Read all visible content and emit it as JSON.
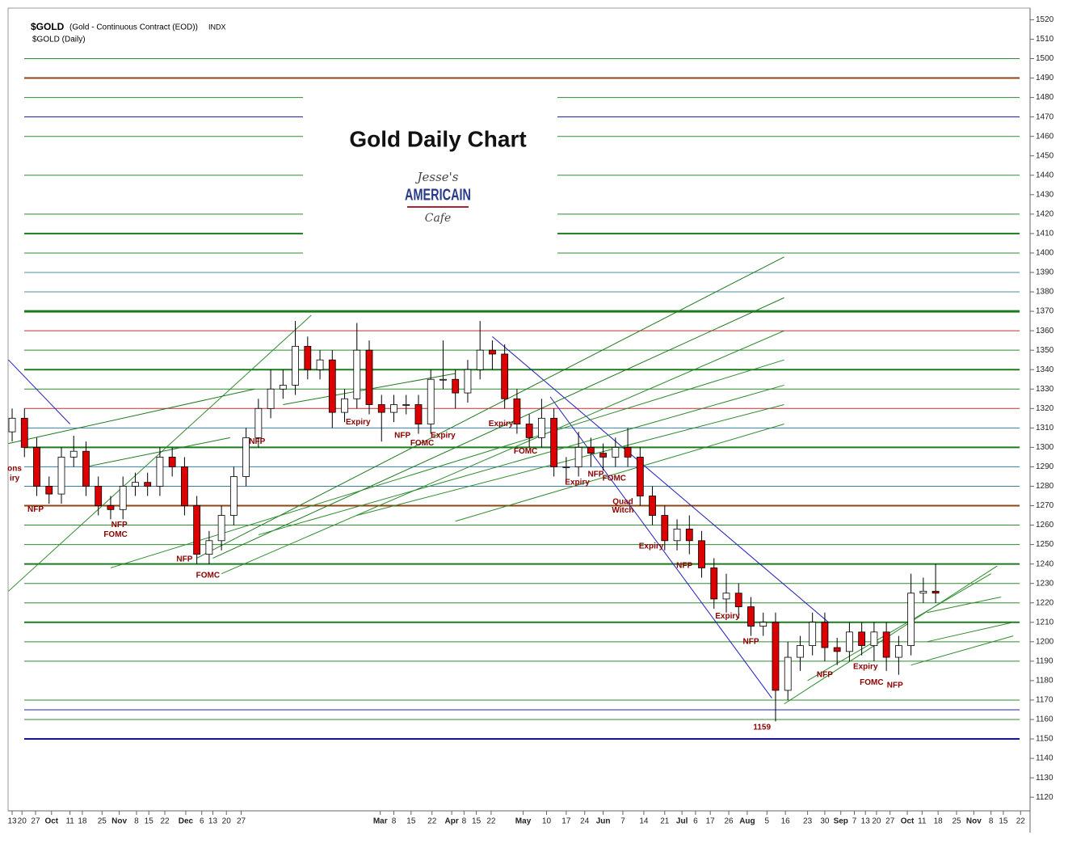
{
  "chart_data": {
    "type": "candlestick",
    "symbol": "$GOLD",
    "description": "(Gold - Continuous Contract (EOD))",
    "exchange": "INDX",
    "subtitle": "$GOLD (Daily)",
    "title": "Gold Daily Chart",
    "logo": [
      "Jesse's",
      "AMERICAIN",
      "Cafe"
    ],
    "opens": [
      1308,
      1315,
      1300,
      1280,
      1276,
      1295,
      1298,
      1280,
      1270,
      1268,
      1280,
      1282,
      1280,
      1295,
      1290,
      1270,
      1245,
      1252,
      1265,
      1285,
      1305,
      1320,
      1330,
      1332,
      1352,
      1340,
      1345,
      1318,
      1325,
      1350,
      1322,
      1318,
      1322,
      1322,
      1312,
      1335,
      1335,
      1328,
      1340,
      1350,
      1348,
      1325,
      1312,
      1305,
      1315,
      1290,
      1290,
      1300,
      1297,
      1295,
      1300,
      1295,
      1275,
      1265,
      1252,
      1258,
      1252,
      1238,
      1222,
      1225,
      1218,
      1208,
      1210,
      1175,
      1192,
      1198,
      1210,
      1197,
      1195,
      1205,
      1198,
      1205,
      1192,
      1198,
      1225,
      1226
    ],
    "highs": [
      1320,
      1320,
      1305,
      1285,
      1300,
      1306,
      1303,
      1285,
      1275,
      1285,
      1287,
      1287,
      1300,
      1300,
      1295,
      1275,
      1257,
      1270,
      1290,
      1310,
      1325,
      1340,
      1340,
      1365,
      1357,
      1350,
      1350,
      1330,
      1364,
      1355,
      1327,
      1327,
      1327,
      1327,
      1340,
      1355,
      1340,
      1345,
      1365,
      1355,
      1353,
      1330,
      1317,
      1325,
      1320,
      1295,
      1308,
      1305,
      1302,
      1305,
      1310,
      1300,
      1280,
      1270,
      1263,
      1265,
      1257,
      1243,
      1235,
      1230,
      1223,
      1215,
      1215,
      1200,
      1203,
      1215,
      1215,
      1202,
      1210,
      1210,
      1210,
      1210,
      1203,
      1235,
      1233,
      1240
    ],
    "lows": [
      1303,
      1295,
      1275,
      1271,
      1271,
      1290,
      1275,
      1265,
      1263,
      1263,
      1275,
      1275,
      1275,
      1285,
      1265,
      1240,
      1240,
      1247,
      1260,
      1280,
      1300,
      1315,
      1325,
      1327,
      1335,
      1335,
      1310,
      1313,
      1320,
      1317,
      1303,
      1313,
      1317,
      1307,
      1307,
      1330,
      1320,
      1323,
      1335,
      1340,
      1320,
      1307,
      1300,
      1300,
      1285,
      1282,
      1285,
      1290,
      1288,
      1290,
      1290,
      1270,
      1260,
      1247,
      1247,
      1245,
      1233,
      1217,
      1215,
      1212,
      1203,
      1203,
      1159,
      1170,
      1185,
      1193,
      1190,
      1188,
      1190,
      1193,
      1190,
      1185,
      1183,
      1193,
      1220,
      1220
    ],
    "closes": [
      1315,
      1300,
      1280,
      1276,
      1295,
      1298,
      1280,
      1270,
      1268,
      1280,
      1282,
      1280,
      1295,
      1290,
      1270,
      1245,
      1252,
      1265,
      1285,
      1305,
      1320,
      1330,
      1332,
      1352,
      1340,
      1345,
      1318,
      1325,
      1350,
      1322,
      1318,
      1322,
      1322,
      1312,
      1335,
      1335,
      1328,
      1340,
      1350,
      1348,
      1325,
      1312,
      1305,
      1315,
      1290,
      1290,
      1300,
      1297,
      1295,
      1300,
      1295,
      1275,
      1265,
      1252,
      1258,
      1252,
      1238,
      1222,
      1225,
      1218,
      1208,
      1210,
      1175,
      1192,
      1198,
      1210,
      1197,
      1195,
      1205,
      1198,
      1205,
      1192,
      1198,
      1225,
      1226,
      1225
    ],
    "up_color": "#ffffff",
    "down_color": "#dd0000",
    "xlim": [
      -0.33,
      82.67
    ],
    "ylim": [
      1113,
      1526
    ],
    "yticks": [
      1120,
      1130,
      1140,
      1150,
      1160,
      1170,
      1180,
      1190,
      1200,
      1210,
      1220,
      1230,
      1240,
      1250,
      1260,
      1270,
      1280,
      1290,
      1300,
      1310,
      1320,
      1330,
      1340,
      1350,
      1360,
      1370,
      1380,
      1390,
      1400,
      1410,
      1420,
      1430,
      1440,
      1450,
      1460,
      1470,
      1480,
      1490,
      1500,
      1510,
      1520
    ],
    "xticks": [
      {
        "value": 0,
        "label": "13"
      },
      {
        "value": 0.8,
        "label": "20"
      },
      {
        "value": 1.9,
        "label": "27"
      },
      {
        "value": 3.2,
        "label": "Oct"
      },
      {
        "value": 4.7,
        "label": "11"
      },
      {
        "value": 5.7,
        "label": "18"
      },
      {
        "value": 7.3,
        "label": "25"
      },
      {
        "value": 8.7,
        "label": "Nov"
      },
      {
        "value": 10.1,
        "label": "8"
      },
      {
        "value": 11.1,
        "label": "15"
      },
      {
        "value": 12.4,
        "label": "22"
      },
      {
        "value": 14.1,
        "label": "Dec"
      },
      {
        "value": 15.4,
        "label": "6"
      },
      {
        "value": 16.3,
        "label": "13"
      },
      {
        "value": 17.4,
        "label": "20"
      },
      {
        "value": 18.6,
        "label": "27"
      },
      {
        "value": 29.9,
        "label": "Mar"
      },
      {
        "value": 31,
        "label": "8"
      },
      {
        "value": 32.4,
        "label": "15"
      },
      {
        "value": 34.1,
        "label": "22"
      },
      {
        "value": 35.7,
        "label": "Apr"
      },
      {
        "value": 36.7,
        "label": "8"
      },
      {
        "value": 37.7,
        "label": "15"
      },
      {
        "value": 38.9,
        "label": "22"
      },
      {
        "value": 41.5,
        "label": "May"
      },
      {
        "value": 43.4,
        "label": "10"
      },
      {
        "value": 45,
        "label": "17"
      },
      {
        "value": 46.5,
        "label": "24"
      },
      {
        "value": 48,
        "label": "Jun"
      },
      {
        "value": 49.6,
        "label": "7"
      },
      {
        "value": 51.3,
        "label": "14"
      },
      {
        "value": 53,
        "label": "21"
      },
      {
        "value": 54.4,
        "label": "Jul"
      },
      {
        "value": 55.5,
        "label": "6"
      },
      {
        "value": 56.7,
        "label": "17"
      },
      {
        "value": 58.2,
        "label": "26"
      },
      {
        "value": 59.7,
        "label": "Aug"
      },
      {
        "value": 61.3,
        "label": "5"
      },
      {
        "value": 62.8,
        "label": "16"
      },
      {
        "value": 64.6,
        "label": "23"
      },
      {
        "value": 66,
        "label": "30"
      },
      {
        "value": 67.3,
        "label": "Sep"
      },
      {
        "value": 68.4,
        "label": "7"
      },
      {
        "value": 69.3,
        "label": "13"
      },
      {
        "value": 70.2,
        "label": "20"
      },
      {
        "value": 71.3,
        "label": "27"
      },
      {
        "value": 72.7,
        "label": "Oct"
      },
      {
        "value": 73.9,
        "label": "11"
      },
      {
        "value": 75.2,
        "label": "18"
      },
      {
        "value": 76.7,
        "label": "25"
      },
      {
        "value": 78.1,
        "label": "Nov"
      },
      {
        "value": 79.5,
        "label": "8"
      },
      {
        "value": 80.5,
        "label": "15"
      },
      {
        "value": 81.9,
        "label": "22"
      }
    ],
    "levels": [
      {
        "value": 1500,
        "color": "#2e8b2e",
        "width": 1
      },
      {
        "value": 1490,
        "color": "#8b4513",
        "width": 2
      },
      {
        "value": 1480,
        "color": "#2e8b2e",
        "width": 1
      },
      {
        "value": 1470,
        "color": "#1a1a8b",
        "width": 1
      },
      {
        "value": 1460,
        "color": "#2e8b2e",
        "width": 1
      },
      {
        "value": 1440,
        "color": "#2e8b2e",
        "width": 1
      },
      {
        "value": 1420,
        "color": "#2e8b2e",
        "width": 1
      },
      {
        "value": 1410,
        "color": "#1e7a1e",
        "width": 2
      },
      {
        "value": 1400,
        "color": "#2e8b2e",
        "width": 1
      },
      {
        "value": 1390,
        "color": "#4a8fa0",
        "width": 1
      },
      {
        "value": 1380,
        "color": "#4a8fa0",
        "width": 1
      },
      {
        "value": 1370,
        "color": "#1e7a1e",
        "width": 3
      },
      {
        "value": 1360,
        "color": "#c03030",
        "width": 1
      },
      {
        "value": 1350,
        "color": "#2e8b2e",
        "width": 1
      },
      {
        "value": 1340,
        "color": "#1e7a1e",
        "width": 2
      },
      {
        "value": 1330,
        "color": "#2e8b2e",
        "width": 1
      },
      {
        "value": 1320,
        "color": "#c03030",
        "width": 1
      },
      {
        "value": 1310,
        "color": "#3a7fa0",
        "width": 1
      },
      {
        "value": 1300,
        "color": "#1e7a1e",
        "width": 2
      },
      {
        "value": 1290,
        "color": "#3a7fa0",
        "width": 1
      },
      {
        "value": 1280,
        "color": "#3a7fa0",
        "width": 1
      },
      {
        "value": 1270,
        "color": "#8b4513",
        "width": 2
      },
      {
        "value": 1260,
        "color": "#2e8b2e",
        "width": 1
      },
      {
        "value": 1250,
        "color": "#2e8b2e",
        "width": 1
      },
      {
        "value": 1240,
        "color": "#1e7a1e",
        "width": 2
      },
      {
        "value": 1230,
        "color": "#2e8b2e",
        "width": 1
      },
      {
        "value": 1220,
        "color": "#2e8b2e",
        "width": 1
      },
      {
        "value": 1210,
        "color": "#1e7a1e",
        "width": 2
      },
      {
        "value": 1200,
        "color": "#2e8b2e",
        "width": 1
      },
      {
        "value": 1190,
        "color": "#2e8b2e",
        "width": 1
      },
      {
        "value": 1170,
        "color": "#2e8b2e",
        "width": 1
      },
      {
        "value": 1165,
        "color": "#2020c0",
        "width": 1
      },
      {
        "value": 1160,
        "color": "#2e8b2e",
        "width": 1
      },
      {
        "value": 1150,
        "color": "#1010c0",
        "width": 2
      }
    ],
    "trendlines": [
      {
        "x": [
          -0.3,
          4.7
        ],
        "y": [
          1345,
          1312
        ],
        "color": "#2020c0"
      },
      {
        "x": [
          39,
          66.3
        ],
        "y": [
          1357,
          1210
        ],
        "color": "#2020c0"
      },
      {
        "x": [
          43.7,
          61.7
        ],
        "y": [
          1326,
          1171
        ],
        "color": "#2020c0"
      },
      {
        "x": [
          -0.3,
          24.3
        ],
        "y": [
          1226,
          1368
        ],
        "color": "#2e8b2e"
      },
      {
        "x": [
          15,
          62.7
        ],
        "y": [
          1243,
          1398
        ],
        "color": "#1e7a1e"
      },
      {
        "x": [
          16.3,
          62.7
        ],
        "y": [
          1243,
          1377
        ],
        "color": "#1e7a1e"
      },
      {
        "x": [
          17,
          62.7
        ],
        "y": [
          1235,
          1360
        ],
        "color": "#2e8b2e"
      },
      {
        "x": [
          8,
          62.7
        ],
        "y": [
          1238,
          1345
        ],
        "color": "#2e8b2e"
      },
      {
        "x": [
          20,
          62.7
        ],
        "y": [
          1255,
          1332
        ],
        "color": "#2e8b2e"
      },
      {
        "x": [
          28,
          62.7
        ],
        "y": [
          1265,
          1322
        ],
        "color": "#2e8b2e"
      },
      {
        "x": [
          36,
          62.7
        ],
        "y": [
          1262,
          1312
        ],
        "color": "#2e8b2e"
      },
      {
        "x": [
          22,
          36
        ],
        "y": [
          1322,
          1338
        ],
        "color": "#1e7a1e"
      },
      {
        "x": [
          -0.3,
          19.7
        ],
        "y": [
          1302,
          1330
        ],
        "color": "#1e7a1e"
      },
      {
        "x": [
          6,
          17.7
        ],
        "y": [
          1290,
          1305
        ],
        "color": "#1e7a1e"
      },
      {
        "x": [
          62.7,
          80
        ],
        "y": [
          1168,
          1239
        ],
        "color": "#2e8b2e"
      },
      {
        "x": [
          64.6,
          79.5
        ],
        "y": [
          1180,
          1235
        ],
        "color": "#2e8b2e"
      },
      {
        "x": [
          74.3,
          80.3
        ],
        "y": [
          1215,
          1223
        ],
        "color": "#2e8b2e"
      },
      {
        "x": [
          74.3,
          81.3
        ],
        "y": [
          1200,
          1210
        ],
        "color": "#2e8b2e"
      },
      {
        "x": [
          73,
          81.3
        ],
        "y": [
          1188,
          1203
        ],
        "color": "#2e8b2e"
      }
    ],
    "annotations": [
      {
        "text": "ons",
        "x": 0.2,
        "y": 1289
      },
      {
        "text": "iry",
        "x": 0.2,
        "y": 1284
      },
      {
        "text": "NFP",
        "x": 1.9,
        "y": 1268
      },
      {
        "text": "NFP",
        "x": 8.7,
        "y": 1260
      },
      {
        "text": "FOMC",
        "x": 8.4,
        "y": 1255
      },
      {
        "text": "NFP",
        "x": 14,
        "y": 1242.5
      },
      {
        "text": "FOMC",
        "x": 15.9,
        "y": 1234
      },
      {
        "text": "NFP",
        "x": 19.9,
        "y": 1303
      },
      {
        "text": "Expiry",
        "x": 28.1,
        "y": 1313
      },
      {
        "text": "NFP",
        "x": 31.7,
        "y": 1306
      },
      {
        "text": "FOMC",
        "x": 33.3,
        "y": 1302
      },
      {
        "text": "Expiry",
        "x": 35,
        "y": 1306
      },
      {
        "text": "Expiry",
        "x": 39.7,
        "y": 1312
      },
      {
        "text": "FOMC",
        "x": 41.7,
        "y": 1298
      },
      {
        "text": "Expiry",
        "x": 45.9,
        "y": 1282
      },
      {
        "text": "NFP",
        "x": 47.4,
        "y": 1286
      },
      {
        "text": "FOMC",
        "x": 48.9,
        "y": 1284
      },
      {
        "text": "Quad",
        "x": 49.6,
        "y": 1272
      },
      {
        "text": "Witch",
        "x": 49.6,
        "y": 1267.5
      },
      {
        "text": "Expiry",
        "x": 51.9,
        "y": 1249
      },
      {
        "text": "NFP",
        "x": 54.6,
        "y": 1239
      },
      {
        "text": "Expiry",
        "x": 58.1,
        "y": 1213
      },
      {
        "text": "NFP",
        "x": 60,
        "y": 1200
      },
      {
        "text": "1159",
        "x": 60.9,
        "y": 1156
      },
      {
        "text": "NFP",
        "x": 66,
        "y": 1183
      },
      {
        "text": "Expiry",
        "x": 69.3,
        "y": 1187
      },
      {
        "text": "FOMC",
        "x": 69.8,
        "y": 1179
      },
      {
        "text": "NFP",
        "x": 71.7,
        "y": 1177.5
      }
    ],
    "annotation_color": "#8b0000"
  }
}
